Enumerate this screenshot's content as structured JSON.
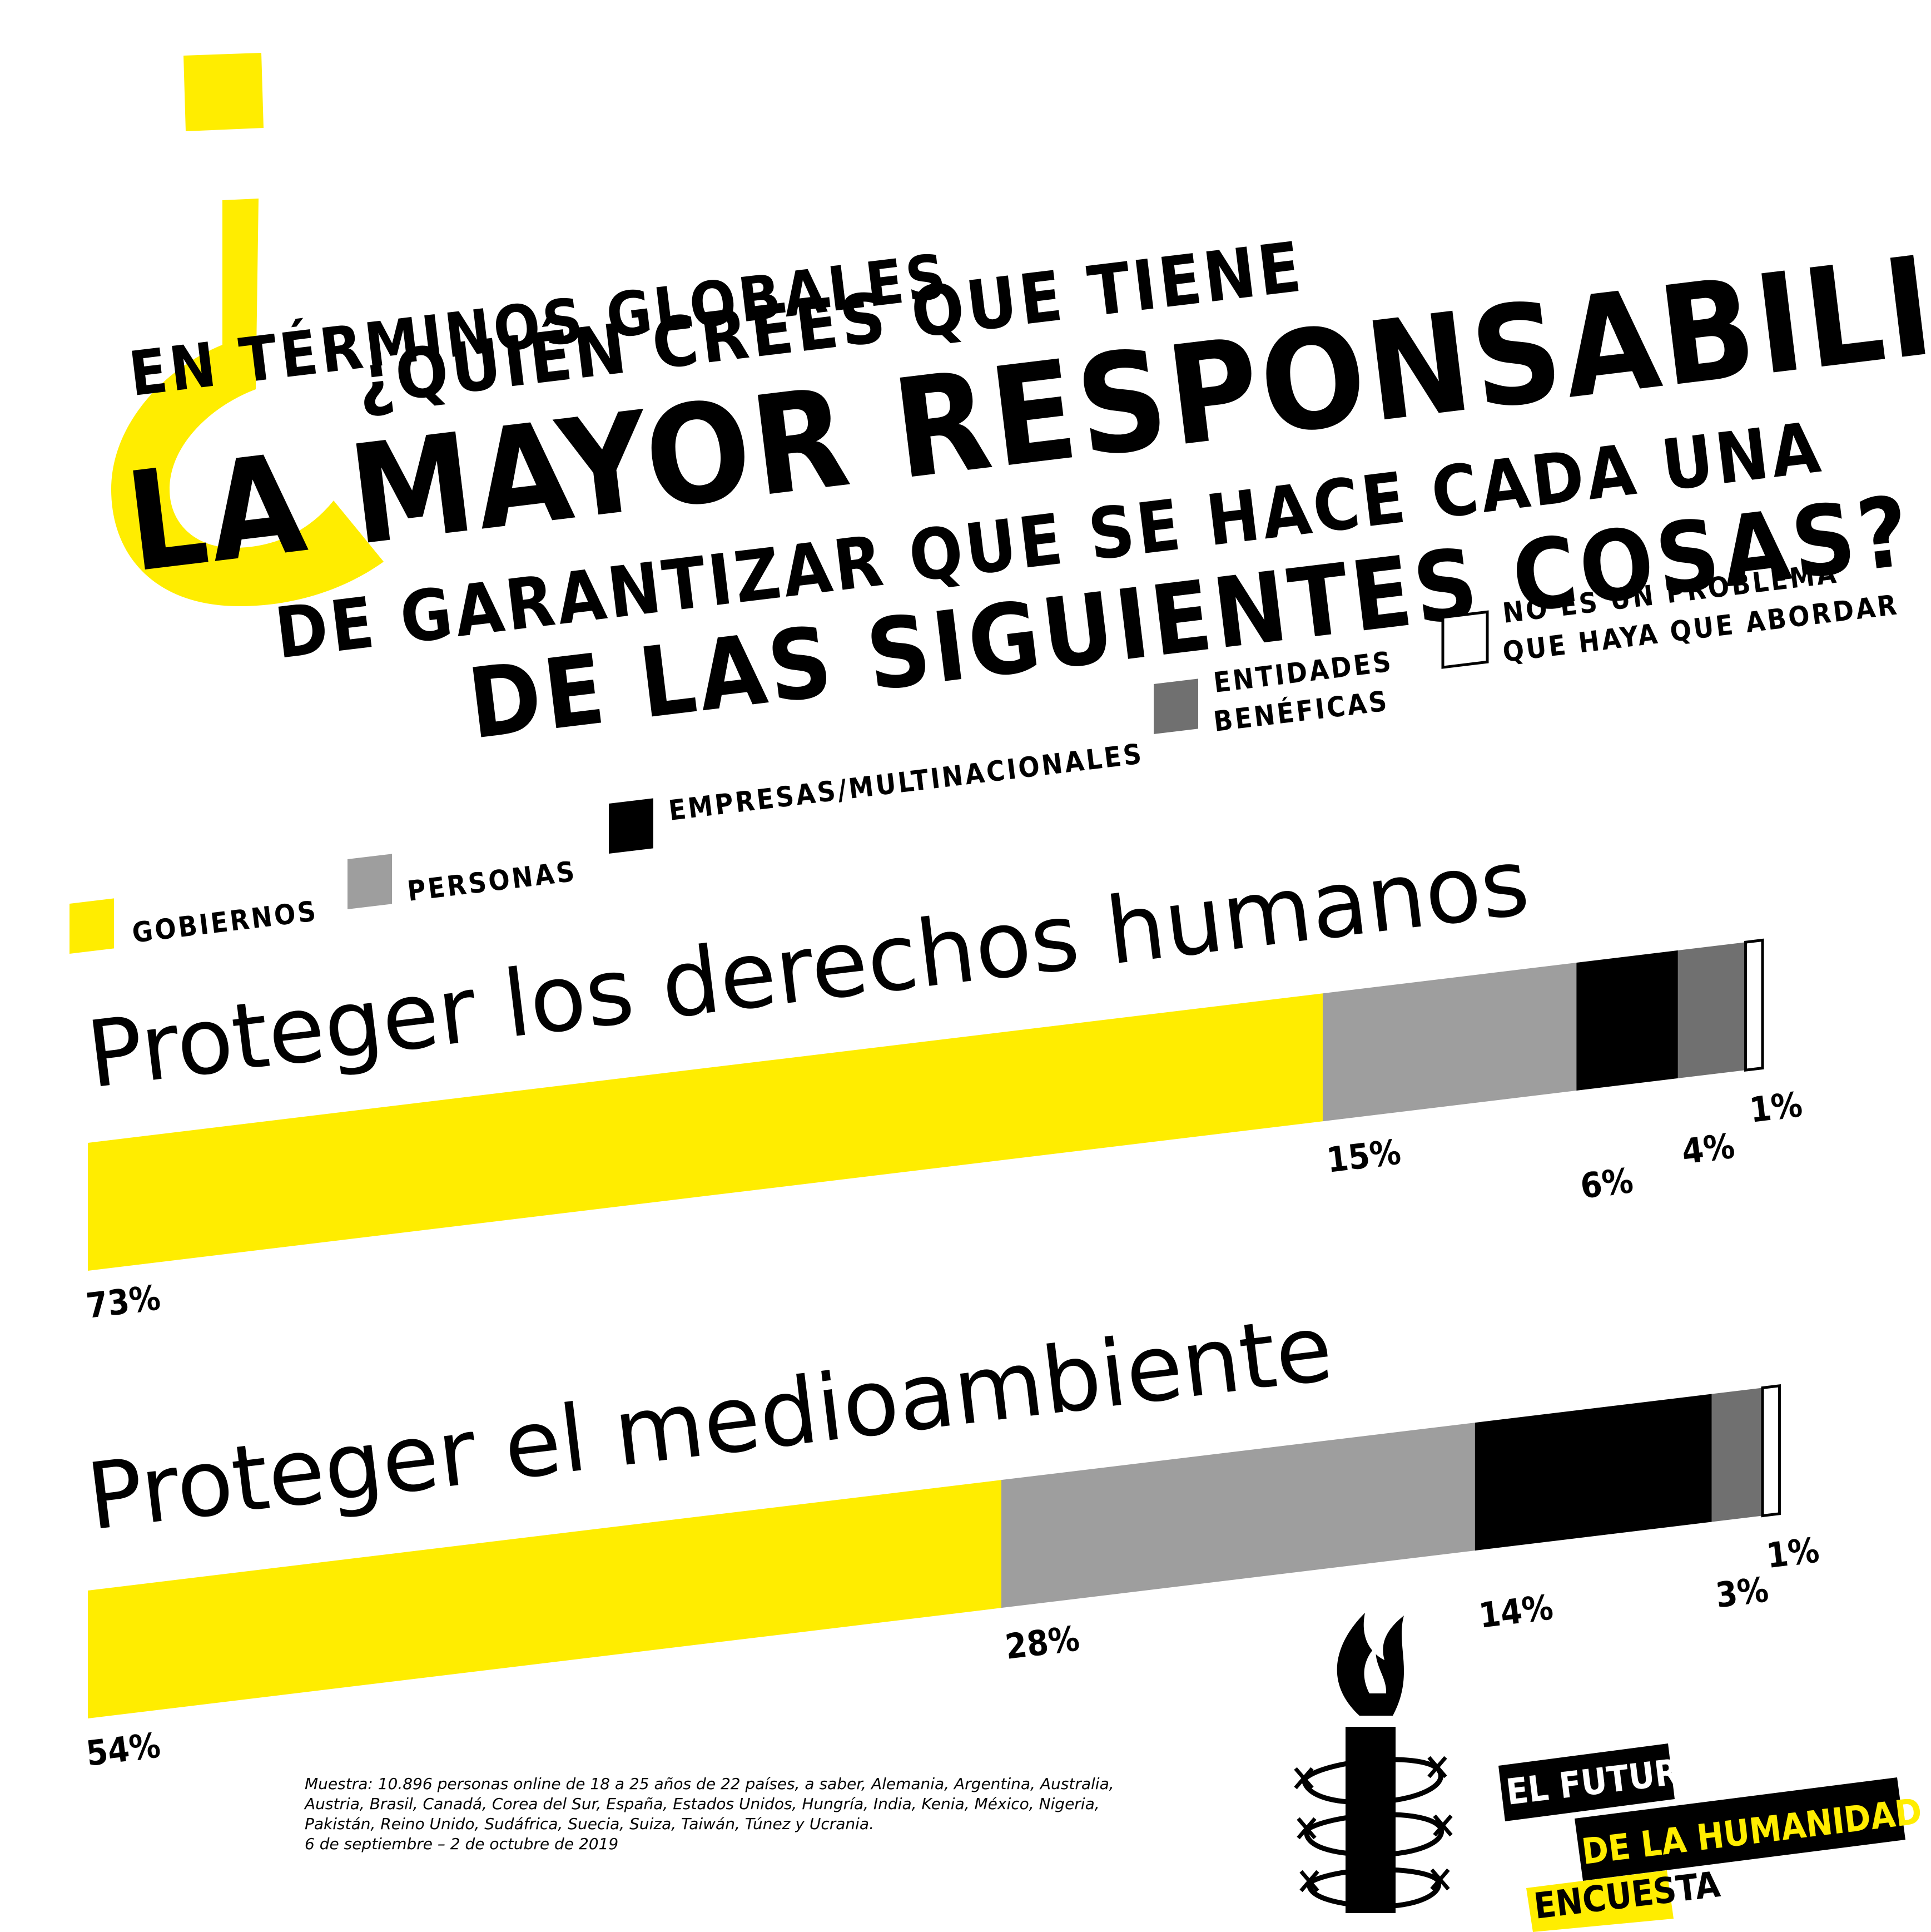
{
  "question": {
    "lines": [
      "EN TÉRMINOS GLOBALES",
      "¿QUIÉN CREES QUE TIENE",
      "LA MAYOR RESPONSABILIDAD",
      "DE GARANTIZAR QUE SE HACE CADA UNA",
      "DE LAS SIGUIENTES COSAS?"
    ]
  },
  "legend": [
    {
      "lines": [
        "GOBIERNOS"
      ],
      "color": "#FFED00"
    },
    {
      "lines": [
        "PERSONAS"
      ],
      "color": "#9E9E9E"
    },
    {
      "lines": [
        "EMPRESAS/MULTINACIONALES"
      ],
      "color": "#000000"
    },
    {
      "lines": [
        "ENTIDADES",
        "BENÉFICAS"
      ],
      "color": "#707070"
    },
    {
      "lines": [
        "NO ES UN PROBLEMA",
        "QUE HAYA QUE ABORDAR"
      ],
      "color": "#FFFFFF"
    }
  ],
  "chart_data": {
    "type": "bar",
    "stacked": true,
    "orientation": "horizontal",
    "categories": [
      "Proteger los derechos humanos",
      "Proteger el medioambiente"
    ],
    "series": [
      {
        "name": "GOBIERNOS",
        "values": [
          73,
          54
        ]
      },
      {
        "name": "PERSONAS",
        "values": [
          15,
          28
        ]
      },
      {
        "name": "EMPRESAS/MULTINACIONALES",
        "values": [
          6,
          14
        ]
      },
      {
        "name": "ENTIDADES BENÉFICAS",
        "values": [
          4,
          3
        ]
      },
      {
        "name": "NO ES UN PROBLEMA QUE HAYA QUE ABORDAR",
        "values": [
          1,
          1
        ]
      }
    ],
    "data_labels": [
      [
        "73%",
        "15%",
        "6%",
        "4%",
        "1%"
      ],
      [
        "54%",
        "28%",
        "14%",
        "3%",
        "1%"
      ]
    ],
    "legend_position": "top",
    "colors": [
      "#FFED00",
      "#9E9E9E",
      "#000000",
      "#707070",
      "#FFFFFF"
    ]
  },
  "footnote": {
    "lines": [
      "Muestra: 10.896 personas online de 18 a 25 años de 22 países, a saber, Alemania, Argentina, Australia,",
      "Austria, Brasil, Canadá, Corea del Sur, España, Estados Unidos, Hungría, India, Kenia, México, Nigeria,",
      "Pakistán, Reino Unido, Sudáfrica, Suecia, Suiza, Taiwán, Túnez y Ucrania.",
      "6 de septiembre – 2 de octubre de 2019"
    ]
  },
  "branding": {
    "logo_icon": "candle-barbed-wire-icon",
    "lines": [
      "EL FUTURO",
      "DE LA HUMANIDAD",
      "ENCUESTA"
    ],
    "accent_color": "#FFED00"
  }
}
